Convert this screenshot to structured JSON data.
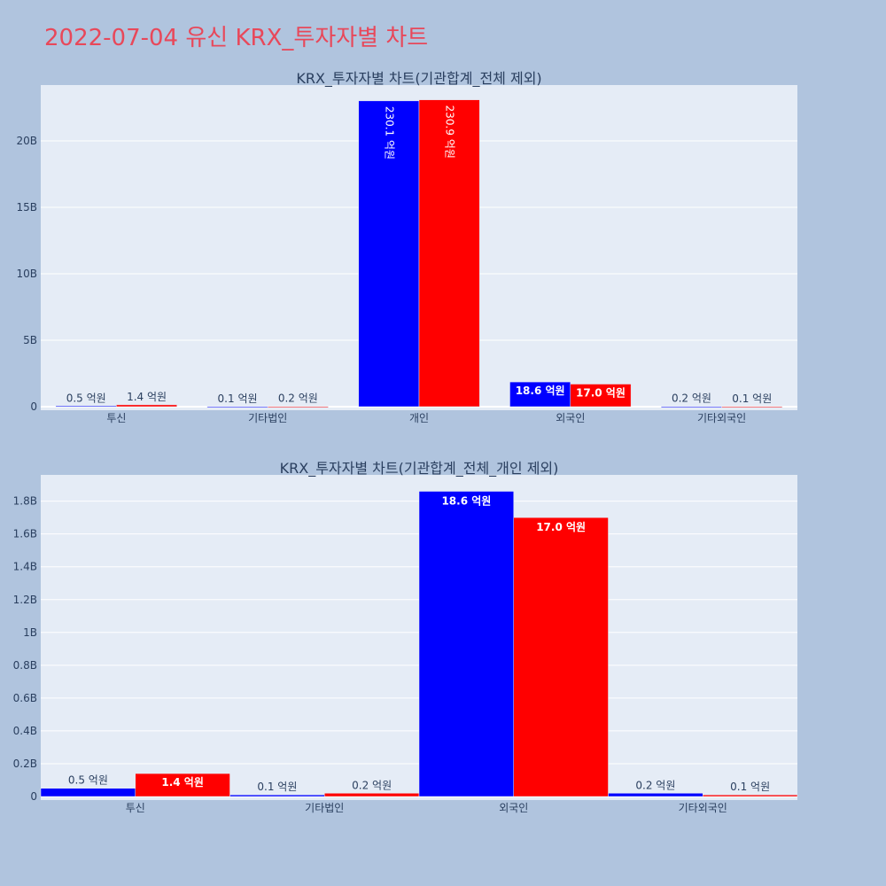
{
  "page": {
    "title": "2022-07-04 유신 KRX_투자자별 차트"
  },
  "colors": {
    "background": "#b0c4de",
    "plot_bg": "#e5ecf6",
    "grid": "#ffffff",
    "title": "#e8485a",
    "text": "#2a3f5f",
    "series_a": "#0000ff",
    "series_b": "#ff0000"
  },
  "chart_data": [
    {
      "type": "bar",
      "title": "KRX_투자자별 차트(기관합계_전체 제외)",
      "categories": [
        "투신",
        "기타법인",
        "개인",
        "외국인",
        "기타외국인"
      ],
      "series": [
        {
          "color": "#0000ff",
          "values": [
            50000000,
            10000000,
            23010000000,
            1860000000,
            20000000
          ],
          "labels": [
            "0.5 억원",
            "0.1 억원",
            "230.1 억원",
            "18.6 억원",
            "0.2 억원"
          ]
        },
        {
          "color": "#ff0000",
          "values": [
            140000000,
            20000000,
            23090000000,
            1700000000,
            10000000
          ],
          "labels": [
            "1.4 억원",
            "0.2 억원",
            "230.9 억원",
            "17.0 억원",
            "0.1 억원"
          ]
        }
      ],
      "ylim": [
        0,
        24200000000
      ],
      "yticks": [
        0,
        5000000000,
        10000000000,
        15000000000,
        20000000000
      ],
      "ytick_labels": [
        "0",
        "5B",
        "10B",
        "15B",
        "20B"
      ],
      "grid": true
    },
    {
      "type": "bar",
      "title": "KRX_투자자별 차트(기관합계_전체_개인 제외)",
      "categories": [
        "투신",
        "기타법인",
        "외국인",
        "기타외국인"
      ],
      "series": [
        {
          "color": "#0000ff",
          "values": [
            50000000,
            10000000,
            1860000000,
            20000000
          ],
          "labels": [
            "0.5 억원",
            "0.1 억원",
            "18.6 억원",
            "0.2 억원"
          ]
        },
        {
          "color": "#ff0000",
          "values": [
            140000000,
            20000000,
            1700000000,
            10000000
          ],
          "labels": [
            "1.4 억원",
            "0.2 억원",
            "17.0 억원",
            "0.1 억원"
          ]
        }
      ],
      "ylim": [
        0,
        1960000000
      ],
      "yticks": [
        0,
        200000000,
        400000000,
        600000000,
        800000000,
        1000000000,
        1200000000,
        1400000000,
        1600000000,
        1800000000
      ],
      "ytick_labels": [
        "0",
        "0.2B",
        "0.4B",
        "0.6B",
        "0.8B",
        "1B",
        "1.2B",
        "1.4B",
        "1.6B",
        "1.8B"
      ],
      "grid": true
    }
  ]
}
